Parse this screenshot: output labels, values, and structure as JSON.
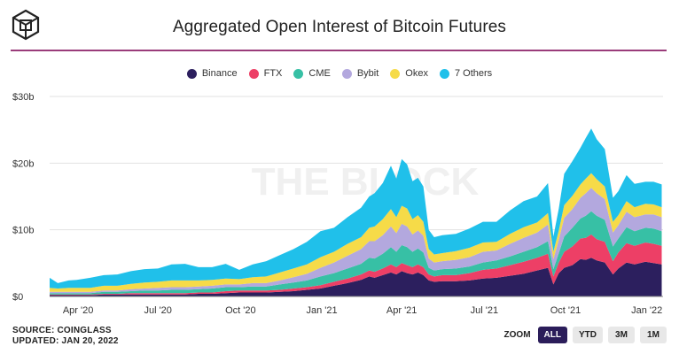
{
  "title": "Aggregated Open Interest of Bitcoin Futures",
  "watermark": "THE BLOCK",
  "footer": {
    "source": "SOURCE: COINGLASS",
    "updated": "UPDATED: JAN 20, 2022"
  },
  "zoom": {
    "label": "ZOOM",
    "buttons": [
      {
        "label": "ALL",
        "active": true
      },
      {
        "label": "YTD",
        "active": false
      },
      {
        "label": "3M",
        "active": false
      },
      {
        "label": "1M",
        "active": false
      }
    ]
  },
  "chart_data": {
    "type": "area",
    "stacked": true,
    "title": "Aggregated Open Interest of Bitcoin Futures",
    "xlabel": "",
    "ylabel": "",
    "ylim": [
      0,
      30
    ],
    "yticks": [
      0,
      10,
      20,
      30
    ],
    "ytick_labels": [
      "$0",
      "$10b",
      "$20b",
      "$30b"
    ],
    "xticks": [
      1.05,
      4.0,
      7.05,
      10.05,
      13.0,
      16.05,
      19.05,
      22.05
    ],
    "xtick_labels": [
      "Apr '20",
      "Jul '20",
      "Oct '20",
      "Jan '21",
      "Apr '21",
      "Jul '21",
      "Oct '21",
      "Jan '22"
    ],
    "xlim": [
      0,
      22.65
    ],
    "legend_position": "top",
    "grid": "horizontal",
    "x": [
      0,
      0.3,
      0.7,
      1.0,
      1.5,
      2.0,
      2.5,
      3.0,
      3.5,
      4.0,
      4.5,
      5.0,
      5.5,
      6.0,
      6.5,
      7.0,
      7.5,
      8.0,
      8.5,
      9.0,
      9.5,
      10.0,
      10.5,
      11.0,
      11.5,
      11.8,
      12.0,
      12.3,
      12.6,
      12.8,
      13.0,
      13.2,
      13.4,
      13.6,
      13.8,
      14.0,
      14.2,
      14.5,
      15.0,
      15.5,
      16.0,
      16.5,
      17.0,
      17.5,
      18.0,
      18.4,
      18.6,
      18.8,
      19.0,
      19.3,
      19.6,
      19.8,
      20.0,
      20.2,
      20.5,
      20.8,
      21.0,
      21.3,
      21.6,
      22.0,
      22.3,
      22.6
    ],
    "series": [
      {
        "name": "Binance",
        "color": "#2c1f5e",
        "values": [
          0.2,
          0.2,
          0.2,
          0.2,
          0.2,
          0.3,
          0.3,
          0.3,
          0.3,
          0.3,
          0.3,
          0.3,
          0.4,
          0.4,
          0.5,
          0.6,
          0.6,
          0.6,
          0.7,
          0.8,
          1.0,
          1.2,
          1.6,
          2.0,
          2.5,
          3.0,
          2.8,
          3.2,
          3.6,
          3.3,
          3.8,
          3.5,
          3.3,
          3.6,
          3.2,
          2.4,
          2.2,
          2.3,
          2.3,
          2.4,
          2.7,
          2.8,
          3.1,
          3.4,
          3.9,
          4.3,
          1.8,
          3.5,
          4.3,
          4.7,
          5.6,
          5.5,
          5.8,
          5.4,
          5.1,
          3.3,
          4.2,
          5.1,
          4.8,
          5.2,
          5.0,
          4.8
        ]
      },
      {
        "name": "FTX",
        "color": "#ed3f66",
        "values": [
          0.1,
          0.1,
          0.1,
          0.1,
          0.1,
          0.1,
          0.1,
          0.2,
          0.2,
          0.2,
          0.2,
          0.2,
          0.2,
          0.2,
          0.3,
          0.3,
          0.3,
          0.3,
          0.3,
          0.4,
          0.4,
          0.5,
          0.6,
          0.7,
          0.8,
          0.9,
          0.9,
          1.0,
          1.2,
          1.1,
          1.2,
          1.2,
          1.1,
          1.2,
          1.2,
          0.9,
          0.8,
          0.9,
          0.9,
          1.1,
          1.3,
          1.4,
          1.6,
          1.8,
          1.9,
          2.1,
          1.2,
          1.6,
          2.4,
          2.8,
          3.1,
          3.3,
          3.5,
          3.2,
          3.1,
          2.0,
          2.4,
          2.9,
          2.8,
          2.9,
          2.9,
          2.8
        ]
      },
      {
        "name": "CME",
        "color": "#37c0a5",
        "values": [
          0.2,
          0.2,
          0.2,
          0.2,
          0.2,
          0.3,
          0.3,
          0.3,
          0.4,
          0.4,
          0.5,
          0.5,
          0.5,
          0.6,
          0.6,
          0.5,
          0.6,
          0.6,
          0.8,
          0.9,
          1.0,
          1.3,
          1.3,
          1.5,
          1.6,
          1.9,
          2.0,
          2.2,
          2.6,
          2.3,
          2.7,
          2.7,
          2.3,
          2.4,
          2.2,
          1.0,
          0.9,
          0.9,
          1.0,
          1.0,
          1.1,
          1.2,
          1.3,
          1.5,
          1.6,
          1.9,
          1.1,
          1.4,
          2.3,
          2.8,
          3.0,
          3.3,
          3.5,
          3.5,
          3.3,
          2.2,
          2.1,
          2.4,
          2.2,
          2.2,
          2.3,
          2.2
        ]
      },
      {
        "name": "Bybit",
        "color": "#b3a8de",
        "values": [
          0.2,
          0.2,
          0.2,
          0.2,
          0.2,
          0.2,
          0.2,
          0.3,
          0.3,
          0.4,
          0.4,
          0.4,
          0.4,
          0.4,
          0.4,
          0.4,
          0.5,
          0.5,
          0.6,
          0.8,
          1.0,
          1.3,
          1.6,
          1.9,
          2.2,
          2.5,
          2.6,
          2.8,
          3.1,
          2.8,
          3.2,
          3.1,
          2.6,
          2.7,
          2.5,
          1.4,
          1.2,
          1.2,
          1.3,
          1.4,
          1.6,
          1.5,
          1.9,
          2.1,
          2.2,
          2.5,
          1.5,
          2.0,
          2.8,
          2.8,
          3.1,
          3.4,
          3.5,
          3.4,
          3.1,
          2.1,
          2.0,
          2.3,
          2.1,
          2.0,
          2.1,
          2.1
        ]
      },
      {
        "name": "Okex",
        "color": "#f6db48",
        "values": [
          0.6,
          0.5,
          0.6,
          0.6,
          0.6,
          0.7,
          0.7,
          0.8,
          0.9,
          0.9,
          1.0,
          1.0,
          0.9,
          0.9,
          0.9,
          0.8,
          0.9,
          1.0,
          1.2,
          1.3,
          1.4,
          1.6,
          1.6,
          1.8,
          1.8,
          2.0,
          2.2,
          2.4,
          2.6,
          2.4,
          2.7,
          2.7,
          2.3,
          2.3,
          2.1,
          1.4,
          1.2,
          1.2,
          1.3,
          1.4,
          1.4,
          1.3,
          1.5,
          1.6,
          1.5,
          1.7,
          1.1,
          1.4,
          1.9,
          2.0,
          2.0,
          2.2,
          2.2,
          2.1,
          1.9,
          1.6,
          1.5,
          1.6,
          1.5,
          1.6,
          1.5,
          1.5
        ]
      },
      {
        "name": "7 Others",
        "color": "#20c0ea",
        "values": [
          1.5,
          0.8,
          1.1,
          1.2,
          1.5,
          1.6,
          1.7,
          1.9,
          2.0,
          2.0,
          2.4,
          2.5,
          2.0,
          1.9,
          2.2,
          1.4,
          1.9,
          2.3,
          2.6,
          2.9,
          3.4,
          3.9,
          3.6,
          4.0,
          4.4,
          4.7,
          5.0,
          5.4,
          6.5,
          5.8,
          7.0,
          6.6,
          5.7,
          5.6,
          5.3,
          2.9,
          2.6,
          2.7,
          2.6,
          2.9,
          3.1,
          3.0,
          3.5,
          3.9,
          3.9,
          4.5,
          2.3,
          3.3,
          4.7,
          5.2,
          5.5,
          6.1,
          6.7,
          6.0,
          5.6,
          3.6,
          3.6,
          3.9,
          3.5,
          3.3,
          3.4,
          3.4
        ]
      }
    ]
  }
}
